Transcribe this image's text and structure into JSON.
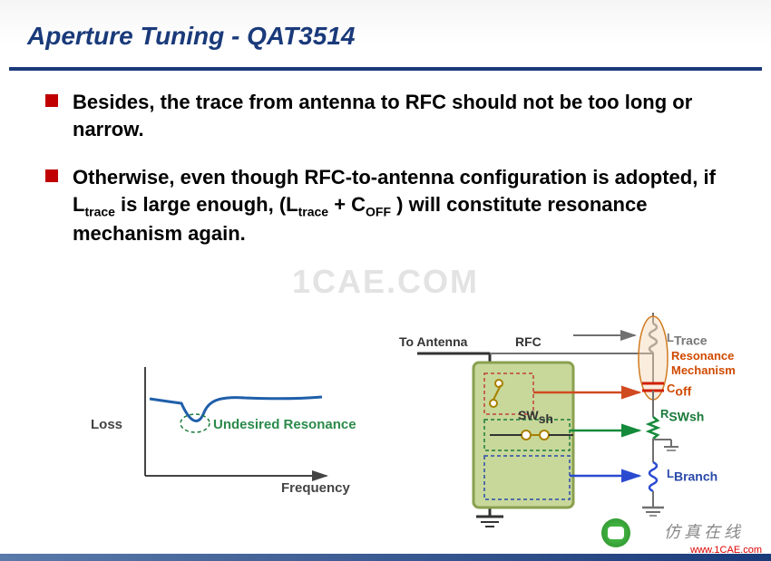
{
  "title": "Aperture Tuning - QAT3514",
  "bullets": [
    {
      "html": "Besides, the trace from antenna to RFC should not be too long or narrow."
    },
    {
      "html": "Otherwise, even though RFC-to-antenna configuration is adopted, if L<span class=\"sub\">trace</span> is large enough, (L<span class=\"sub\">trace</span> + C<span class=\"sub\">OFF</span> ) will constitute resonance mechanism again."
    }
  ],
  "watermark": "1CAE.COM",
  "loss_graph": {
    "x_label": "Frequency",
    "y_label": "Loss",
    "annotation": "Undesired Resonance",
    "axis_color": "#444444",
    "curve_color": "#1f5faa",
    "dash_color": "#1a7a3a"
  },
  "circuit": {
    "to_antenna": "To Antenna",
    "rfc": "RFC",
    "swsh": "SWsh",
    "ltrace": "LTrace",
    "coff": "Coff",
    "rswsh": "RSWsh",
    "lbranch": "LBranch",
    "res_mech": "Resonance Mechanism",
    "chip_fill": "#c8d89a",
    "chip_stroke": "#8aa050",
    "open_box": "#c04040",
    "closed_box": "#1a7a3a",
    "branch_box": "#2a4aaa",
    "wire_gray": "#707070",
    "orange_line": "#d04a20",
    "green_line": "#148a3a",
    "blue_line": "#2a4ad0",
    "coil_gray": "#808080",
    "cap_color": "#d02000",
    "res_color": "#148a3a",
    "coil_blue": "#2a4ad0",
    "res_oval_fill": "#f5d7b5",
    "res_oval_stroke": "#d07a20"
  },
  "footer": {
    "wm2": "仿真在线",
    "wm3": "www.1CAE.com"
  }
}
